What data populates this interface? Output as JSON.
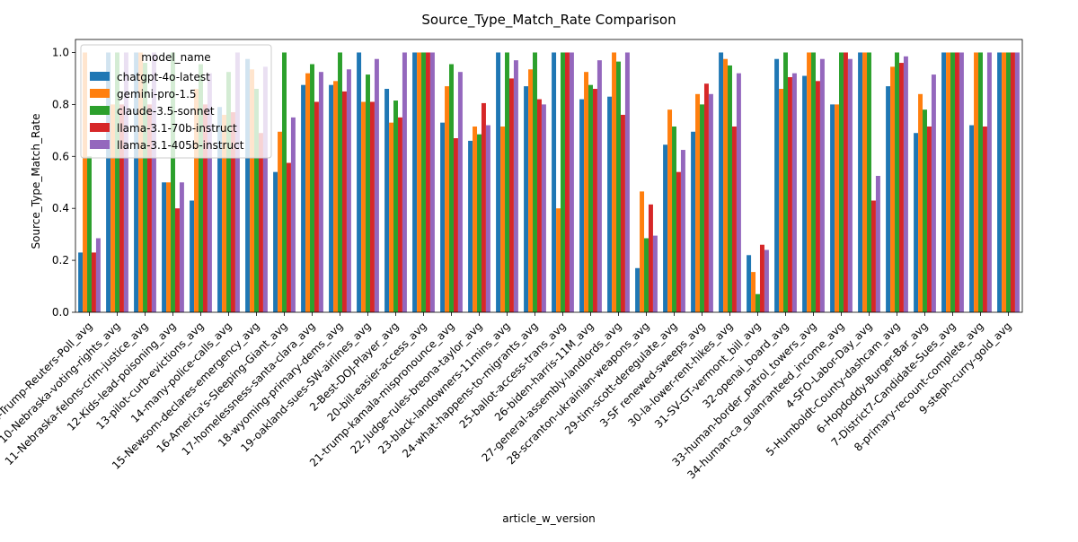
{
  "chart_data": {
    "type": "bar",
    "title": "Source_Type_Match_Rate Comparison",
    "xlabel": "article_w_version",
    "ylabel": "Source_Type_Match_Rate",
    "ylim": [
      0,
      1.05
    ],
    "yticks": [
      0.0,
      0.2,
      0.4,
      0.6,
      0.8,
      1.0
    ],
    "grid": false,
    "legend": {
      "title": "model_name",
      "placement": "upper-left"
    },
    "categories": [
      "1-Harris-Trump-Reuters-Poll_avg",
      "10-Nebraska-voting-rights_avg",
      "11-Nebraska-felons-crim-justice_avg",
      "12-Kids-lead-poisoning_avg",
      "13-pilot-curb-evictions_avg",
      "14-many-police-calls_avg",
      "15-Newsom-declares-emergency_avg",
      "16-America's-Sleeping-Giant_avg",
      "17-homelessness-santa-clara_avg",
      "18-wyoming-primary-dems_avg",
      "19-oakland-sues-SW-airlines_avg",
      "2-Best-DOJ-Player_avg",
      "20-bill-easier-access_avg",
      "21-trump-kamala-mispronounce_avg",
      "22-Judge-rules-breona-taylor_avg",
      "23-black-landowners-11mins_avg",
      "24-what-happens-to-migrants_avg",
      "25-ballot-access-trans_avg",
      "26-biden-harris-11M_avg",
      "27-general-assembly-landlords_avg",
      "28-scranton-ukrainian-weapons_avg",
      "29-tim-scott-deregulate_avg",
      "3-SF renewed-sweeps_avg",
      "30-la-lower-rent-hikes_avg",
      "31-SV-GT-vermont_bill_avg",
      "32-openai_board_avg",
      "33-human-border_patrol_towers_avg",
      "34-human-ca_guanranteed_income_avg",
      "4-SFO-Labor-Day_avg",
      "5-Humboldt-County-dashcam_avg",
      "6-Hopdoddy-Burger-Bar_avg",
      "7-District7-Candidate-Sues_avg",
      "8-primary-recount-complete_avg",
      "9-steph-curry-gold_avg"
    ],
    "series": [
      {
        "name": "chatgpt-4o-latest",
        "color": "#1f77b4",
        "values": [
          0.23,
          1.0,
          1.0,
          0.5,
          0.43,
          0.79,
          0.975,
          0.54,
          0.875,
          0.875,
          1.0,
          0.86,
          1.0,
          0.73,
          0.66,
          1.0,
          0.87,
          1.0,
          0.82,
          0.83,
          0.17,
          0.645,
          0.695,
          1.0,
          0.22,
          0.975,
          0.91,
          0.8,
          1.0,
          0.87,
          0.69,
          1.0,
          0.72,
          1.0
        ]
      },
      {
        "name": "gemini-pro-1.5",
        "color": "#ff7f0e",
        "values": [
          1.0,
          0.8,
          1.0,
          0.5,
          0.86,
          0.76,
          0.935,
          0.695,
          0.92,
          0.89,
          0.81,
          0.73,
          1.0,
          0.87,
          0.715,
          0.715,
          0.935,
          0.4,
          0.925,
          1.0,
          0.465,
          0.78,
          0.84,
          0.975,
          0.155,
          0.86,
          1.0,
          0.8,
          1.0,
          0.945,
          0.84,
          1.0,
          1.0,
          1.0
        ]
      },
      {
        "name": "claude-3.5-sonnet",
        "color": "#2ca02c",
        "values": [
          0.6,
          1.0,
          0.96,
          1.0,
          0.955,
          0.925,
          0.86,
          1.0,
          0.955,
          1.0,
          0.915,
          0.815,
          1.0,
          0.955,
          0.685,
          1.0,
          1.0,
          1.0,
          0.875,
          0.965,
          0.285,
          0.715,
          0.8,
          0.95,
          0.07,
          1.0,
          1.0,
          1.0,
          1.0,
          1.0,
          0.78,
          1.0,
          1.0,
          1.0
        ]
      },
      {
        "name": "llama-3.1-70b-instruct",
        "color": "#d62728",
        "values": [
          0.23,
          0.8,
          0.8,
          0.4,
          0.8,
          0.77,
          0.69,
          0.575,
          0.81,
          0.85,
          0.81,
          0.75,
          1.0,
          0.67,
          0.805,
          0.9,
          0.82,
          1.0,
          0.86,
          0.76,
          0.415,
          0.54,
          0.88,
          0.715,
          0.26,
          0.905,
          0.89,
          1.0,
          0.43,
          0.96,
          0.715,
          1.0,
          0.715,
          1.0
        ]
      },
      {
        "name": "llama-3.1-405b-instruct",
        "color": "#9467bd",
        "values": [
          0.285,
          1.0,
          1.0,
          0.5,
          0.92,
          1.0,
          0.945,
          0.75,
          0.925,
          0.935,
          0.975,
          1.0,
          1.0,
          0.925,
          0.72,
          0.97,
          0.8,
          1.0,
          0.97,
          1.0,
          0.295,
          0.625,
          0.84,
          0.92,
          0.24,
          0.92,
          0.975,
          0.975,
          0.525,
          0.985,
          0.915,
          1.0,
          1.0,
          1.0
        ]
      }
    ]
  }
}
